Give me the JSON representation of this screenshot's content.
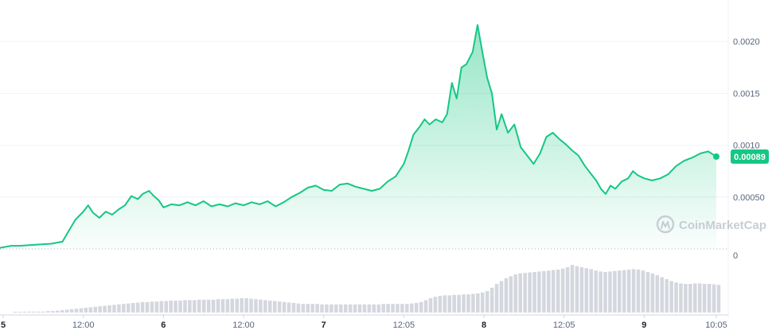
{
  "watermark": "CoinMarketCap",
  "current_price_label": "0.00089",
  "colors": {
    "line": "#16c784",
    "area_top": "#16c784",
    "volume": "#d4d7de",
    "grid": "#eff2f5",
    "axis_text": "#58667e"
  },
  "chart_data": {
    "type": "area",
    "title": "",
    "xlabel": "",
    "ylabel": "",
    "ylim": [
      0,
      0.0024
    ],
    "y_ticks": [
      {
        "value": 0,
        "label": "0"
      },
      {
        "value": 0.0005,
        "label": "0.00050"
      },
      {
        "value": 0.001,
        "label": "0.0010"
      },
      {
        "value": 0.0015,
        "label": "0.0015"
      },
      {
        "value": 0.002,
        "label": "0.0020"
      }
    ],
    "x_ticks": [
      {
        "t": 0.0,
        "label": "5",
        "bold": true
      },
      {
        "t": 0.5,
        "label": "12:00",
        "bold": false
      },
      {
        "t": 1.0,
        "label": "6",
        "bold": true
      },
      {
        "t": 1.5,
        "label": "12:00",
        "bold": false
      },
      {
        "t": 2.0,
        "label": "7",
        "bold": true
      },
      {
        "t": 2.5,
        "label": "12:05",
        "bold": false
      },
      {
        "t": 3.0,
        "label": "8",
        "bold": true
      },
      {
        "t": 3.5,
        "label": "12:05",
        "bold": false
      },
      {
        "t": 4.0,
        "label": "9",
        "bold": true
      },
      {
        "t": 4.45,
        "label": "10:05",
        "bold": false
      }
    ],
    "x_range": [
      -0.02,
      4.48
    ],
    "current_value": 0.00089,
    "series": [
      {
        "values": [
          [
            -0.02,
            1e-05
          ],
          [
            0.05,
            3e-05
          ],
          [
            0.1,
            3e-05
          ],
          [
            0.2,
            4e-05
          ],
          [
            0.3,
            5e-05
          ],
          [
            0.37,
            7e-05
          ],
          [
            0.4,
            0.00015
          ],
          [
            0.45,
            0.00028
          ],
          [
            0.5,
            0.00036
          ],
          [
            0.53,
            0.00042
          ],
          [
            0.56,
            0.00035
          ],
          [
            0.6,
            0.0003
          ],
          [
            0.64,
            0.00036
          ],
          [
            0.68,
            0.00033
          ],
          [
            0.72,
            0.00038
          ],
          [
            0.76,
            0.00042
          ],
          [
            0.8,
            0.00051
          ],
          [
            0.84,
            0.00048
          ],
          [
            0.87,
            0.00053
          ],
          [
            0.91,
            0.00056
          ],
          [
            0.94,
            0.00051
          ],
          [
            0.97,
            0.00047
          ],
          [
            1.0,
            0.0004
          ],
          [
            1.05,
            0.00043
          ],
          [
            1.1,
            0.00042
          ],
          [
            1.15,
            0.00045
          ],
          [
            1.2,
            0.00042
          ],
          [
            1.25,
            0.00046
          ],
          [
            1.3,
            0.00041
          ],
          [
            1.35,
            0.00043
          ],
          [
            1.4,
            0.00041
          ],
          [
            1.45,
            0.00044
          ],
          [
            1.5,
            0.00042
          ],
          [
            1.55,
            0.00045
          ],
          [
            1.6,
            0.00043
          ],
          [
            1.65,
            0.00046
          ],
          [
            1.7,
            0.00041
          ],
          [
            1.75,
            0.00045
          ],
          [
            1.8,
            0.0005
          ],
          [
            1.85,
            0.00054
          ],
          [
            1.9,
            0.00059
          ],
          [
            1.95,
            0.00061
          ],
          [
            2.0,
            0.00057
          ],
          [
            2.05,
            0.00056
          ],
          [
            2.1,
            0.00062
          ],
          [
            2.15,
            0.00063
          ],
          [
            2.2,
            0.0006
          ],
          [
            2.25,
            0.00058
          ],
          [
            2.3,
            0.00056
          ],
          [
            2.35,
            0.00058
          ],
          [
            2.4,
            0.00065
          ],
          [
            2.45,
            0.0007
          ],
          [
            2.5,
            0.00082
          ],
          [
            2.53,
            0.00095
          ],
          [
            2.56,
            0.0011
          ],
          [
            2.6,
            0.00118
          ],
          [
            2.63,
            0.00125
          ],
          [
            2.66,
            0.0012
          ],
          [
            2.7,
            0.00125
          ],
          [
            2.74,
            0.00122
          ],
          [
            2.77,
            0.0013
          ],
          [
            2.8,
            0.0016
          ],
          [
            2.83,
            0.00145
          ],
          [
            2.86,
            0.00175
          ],
          [
            2.89,
            0.00178
          ],
          [
            2.93,
            0.0019
          ],
          [
            2.96,
            0.00216
          ],
          [
            2.99,
            0.0019
          ],
          [
            3.02,
            0.00165
          ],
          [
            3.05,
            0.0015
          ],
          [
            3.08,
            0.00115
          ],
          [
            3.11,
            0.0013
          ],
          [
            3.15,
            0.00112
          ],
          [
            3.19,
            0.0012
          ],
          [
            3.23,
            0.00098
          ],
          [
            3.27,
            0.0009
          ],
          [
            3.31,
            0.00082
          ],
          [
            3.35,
            0.00092
          ],
          [
            3.39,
            0.00108
          ],
          [
            3.43,
            0.00112
          ],
          [
            3.47,
            0.00106
          ],
          [
            3.51,
            0.00101
          ],
          [
            3.55,
            0.00095
          ],
          [
            3.59,
            0.0009
          ],
          [
            3.63,
            0.0008
          ],
          [
            3.67,
            0.00072
          ],
          [
            3.7,
            0.00066
          ],
          [
            3.73,
            0.00058
          ],
          [
            3.76,
            0.00053
          ],
          [
            3.79,
            0.00061
          ],
          [
            3.82,
            0.00058
          ],
          [
            3.86,
            0.00065
          ],
          [
            3.9,
            0.00068
          ],
          [
            3.93,
            0.00075
          ],
          [
            3.96,
            0.00071
          ],
          [
            4.0,
            0.00068
          ],
          [
            4.05,
            0.00066
          ],
          [
            4.1,
            0.00068
          ],
          [
            4.15,
            0.00072
          ],
          [
            4.2,
            0.0008
          ],
          [
            4.25,
            0.00085
          ],
          [
            4.3,
            0.00088
          ],
          [
            4.35,
            0.00092
          ],
          [
            4.4,
            0.00094
          ],
          [
            4.43,
            0.00091
          ],
          [
            4.45,
            0.00089
          ]
        ]
      }
    ],
    "volume": [
      0.01,
      0.01,
      0.01,
      0.02,
      0.02,
      0.02,
      0.02,
      0.03,
      0.03,
      0.04,
      0.05,
      0.06,
      0.07,
      0.08,
      0.09,
      0.1,
      0.11,
      0.12,
      0.13,
      0.14,
      0.15,
      0.16,
      0.17,
      0.18,
      0.19,
      0.2,
      0.21,
      0.22,
      0.22,
      0.23,
      0.23,
      0.24,
      0.24,
      0.25,
      0.25,
      0.25,
      0.26,
      0.26,
      0.26,
      0.27,
      0.27,
      0.27,
      0.27,
      0.28,
      0.28,
      0.28,
      0.29,
      0.29,
      0.3,
      0.3,
      0.29,
      0.28,
      0.27,
      0.26,
      0.25,
      0.24,
      0.23,
      0.22,
      0.21,
      0.2,
      0.19,
      0.18,
      0.18,
      0.18,
      0.18,
      0.17,
      0.17,
      0.17,
      0.17,
      0.17,
      0.17,
      0.17,
      0.17,
      0.17,
      0.17,
      0.17,
      0.17,
      0.17,
      0.18,
      0.18,
      0.18,
      0.18,
      0.18,
      0.18,
      0.19,
      0.2,
      0.22,
      0.26,
      0.3,
      0.33,
      0.35,
      0.36,
      0.36,
      0.37,
      0.37,
      0.38,
      0.38,
      0.39,
      0.4,
      0.42,
      0.45,
      0.52,
      0.6,
      0.66,
      0.72,
      0.76,
      0.8,
      0.82,
      0.83,
      0.84,
      0.85,
      0.86,
      0.87,
      0.88,
      0.89,
      0.9,
      0.92,
      0.95,
      1.0,
      0.97,
      0.95,
      0.93,
      0.91,
      0.88,
      0.86,
      0.85,
      0.86,
      0.87,
      0.88,
      0.89,
      0.9,
      0.91,
      0.9,
      0.88,
      0.85,
      0.82,
      0.78,
      0.74,
      0.7,
      0.66,
      0.63,
      0.61,
      0.6,
      0.6,
      0.61,
      0.61,
      0.6,
      0.6,
      0.59,
      0.58
    ]
  }
}
